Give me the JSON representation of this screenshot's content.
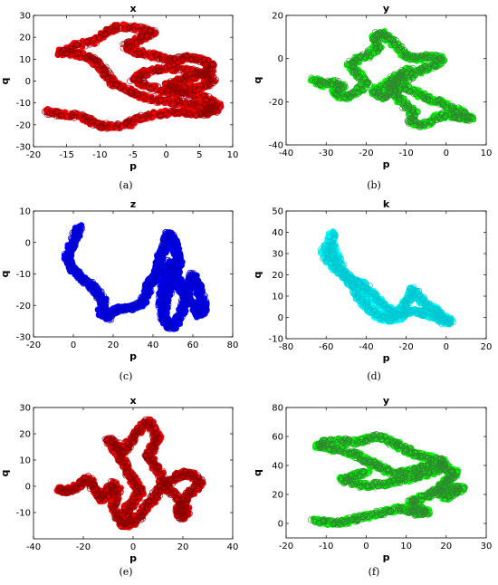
{
  "panel_labels": [
    "(a)",
    "(b)",
    "(c)",
    "(d)",
    "(e)",
    "(f)"
  ],
  "chart_data": [
    {
      "type": "scatter",
      "title": "x",
      "xlabel": "p",
      "ylabel": "q",
      "xlim": [
        -20,
        10
      ],
      "ylim": [
        -30,
        30
      ],
      "xticks": [
        -20,
        -15,
        -10,
        -5,
        0,
        5,
        10
      ],
      "yticks": [
        -30,
        -20,
        -10,
        0,
        10,
        20,
        30
      ],
      "grid": false,
      "marker": "open-circle",
      "color": "#ff0000",
      "edge_color": "#8b0000",
      "halo_color": "#ffc0ff",
      "trajectory": [
        [
          -18,
          -14
        ],
        [
          -16,
          -15
        ],
        [
          -13,
          -16
        ],
        [
          -11,
          -19
        ],
        [
          -9,
          -21
        ],
        [
          -6,
          -20
        ],
        [
          -4,
          -17
        ],
        [
          -1,
          -15
        ],
        [
          2,
          -14
        ],
        [
          5,
          -15
        ],
        [
          7,
          -13
        ],
        [
          5,
          -11
        ],
        [
          2,
          -10
        ],
        [
          -1,
          -9
        ],
        [
          -4,
          -7
        ],
        [
          -6,
          -4
        ],
        [
          -8,
          -1
        ],
        [
          -9,
          3
        ],
        [
          -10,
          7
        ],
        [
          -11,
          10
        ],
        [
          -13,
          12
        ],
        [
          -16,
          13
        ],
        [
          -14,
          16
        ],
        [
          -11,
          18
        ],
        [
          -9,
          22
        ],
        [
          -7,
          25
        ],
        [
          -4,
          24
        ],
        [
          -2,
          22
        ],
        [
          -4,
          19
        ],
        [
          -6,
          16
        ],
        [
          -4,
          13
        ],
        [
          -1,
          11
        ],
        [
          1,
          9
        ],
        [
          3,
          11
        ],
        [
          5,
          10
        ],
        [
          7,
          7
        ],
        [
          6,
          4
        ],
        [
          4,
          2
        ],
        [
          2,
          0
        ],
        [
          0,
          -2
        ],
        [
          2,
          -4
        ],
        [
          5,
          -3
        ],
        [
          7,
          0
        ],
        [
          6,
          3
        ],
        [
          3,
          5
        ],
        [
          0,
          6
        ],
        [
          -3,
          4
        ],
        [
          -5,
          1
        ],
        [
          -3,
          -2
        ],
        [
          0,
          -5
        ],
        [
          3,
          -6
        ],
        [
          6,
          -8
        ],
        [
          8,
          -12
        ],
        [
          6,
          -15
        ]
      ]
    },
    {
      "type": "scatter",
      "title": "y",
      "xlabel": "p",
      "ylabel": "q",
      "xlim": [
        -40,
        10
      ],
      "ylim": [
        -40,
        20
      ],
      "xticks": [
        -40,
        -30,
        -20,
        -10,
        0,
        10
      ],
      "yticks": [
        -40,
        -20,
        0,
        20
      ],
      "grid": false,
      "marker": "open-circle",
      "color": "#00ff00",
      "edge_color": "#2e8b2e",
      "halo_color": "#ffffff",
      "trajectory": [
        [
          -33,
          -10
        ],
        [
          -31,
          -12
        ],
        [
          -28,
          -11
        ],
        [
          -26,
          -13
        ],
        [
          -28,
          -16
        ],
        [
          -25,
          -18
        ],
        [
          -22,
          -15
        ],
        [
          -20,
          -11
        ],
        [
          -22,
          -7
        ],
        [
          -24,
          -3
        ],
        [
          -22,
          0
        ],
        [
          -19,
          2
        ],
        [
          -17,
          6
        ],
        [
          -18,
          10
        ],
        [
          -16,
          12
        ],
        [
          -14,
          9
        ],
        [
          -12,
          5
        ],
        [
          -10,
          1
        ],
        [
          -7,
          0
        ],
        [
          -4,
          1
        ],
        [
          -1,
          0
        ],
        [
          -3,
          -3
        ],
        [
          -6,
          -5
        ],
        [
          -9,
          -8
        ],
        [
          -12,
          -11
        ],
        [
          -14,
          -14
        ],
        [
          -12,
          -18
        ],
        [
          -10,
          -22
        ],
        [
          -8,
          -25
        ],
        [
          -9,
          -29
        ],
        [
          -6,
          -31
        ],
        [
          -3,
          -28
        ],
        [
          0,
          -26
        ],
        [
          3,
          -27
        ],
        [
          6,
          -28
        ],
        [
          4,
          -25
        ],
        [
          1,
          -23
        ],
        [
          -2,
          -20
        ],
        [
          -5,
          -18
        ],
        [
          -8,
          -15
        ],
        [
          -11,
          -13
        ],
        [
          -14,
          -16
        ],
        [
          -16,
          -18
        ],
        [
          -18,
          -15
        ],
        [
          -15,
          -12
        ],
        [
          -13,
          -9
        ],
        [
          -11,
          -7
        ],
        [
          -9,
          -5
        ]
      ]
    },
    {
      "type": "scatter",
      "title": "z",
      "xlabel": "p",
      "ylabel": "q",
      "xlim": [
        -20,
        80
      ],
      "ylim": [
        -30,
        10
      ],
      "xticks": [
        -20,
        0,
        20,
        40,
        60,
        80
      ],
      "yticks": [
        -30,
        -20,
        -10,
        0,
        10
      ],
      "grid": false,
      "marker": "open-circle",
      "color": "#0000ff",
      "edge_color": "#0000cd",
      "halo_color": "#ffffff",
      "trajectory": [
        [
          3,
          5
        ],
        [
          1,
          2
        ],
        [
          -1,
          -1
        ],
        [
          -3,
          -5
        ],
        [
          -1,
          -8
        ],
        [
          2,
          -10
        ],
        [
          5,
          -12
        ],
        [
          8,
          -13
        ],
        [
          11,
          -15
        ],
        [
          13,
          -17
        ],
        [
          15,
          -19
        ],
        [
          14,
          -22
        ],
        [
          17,
          -24
        ],
        [
          20,
          -22
        ],
        [
          24,
          -21
        ],
        [
          28,
          -21
        ],
        [
          32,
          -20
        ],
        [
          35,
          -19
        ],
        [
          37,
          -16
        ],
        [
          38,
          -13
        ],
        [
          40,
          -12
        ],
        [
          42,
          -10
        ],
        [
          43,
          -7
        ],
        [
          44,
          -4
        ],
        [
          46,
          -2
        ],
        [
          47,
          1
        ],
        [
          48,
          3
        ],
        [
          50,
          1
        ],
        [
          52,
          -3
        ],
        [
          53,
          -7
        ],
        [
          50,
          -11
        ],
        [
          48,
          -15
        ],
        [
          46,
          -19
        ],
        [
          45,
          -23
        ],
        [
          47,
          -26
        ],
        [
          50,
          -27
        ],
        [
          53,
          -24
        ],
        [
          55,
          -21
        ],
        [
          57,
          -17
        ],
        [
          58,
          -13
        ],
        [
          60,
          -10
        ],
        [
          62,
          -13
        ],
        [
          64,
          -17
        ],
        [
          66,
          -21
        ],
        [
          63,
          -23
        ],
        [
          60,
          -20
        ],
        [
          56,
          -17
        ],
        [
          53,
          -13
        ],
        [
          51,
          -9
        ],
        [
          49,
          -6
        ],
        [
          47,
          -10
        ],
        [
          45,
          -15
        ],
        [
          44,
          -20
        ]
      ]
    },
    {
      "type": "scatter",
      "title": "k",
      "xlabel": "p",
      "ylabel": "q",
      "xlim": [
        -80,
        20
      ],
      "ylim": [
        -10,
        50
      ],
      "xticks": [
        -80,
        -60,
        -40,
        -20,
        0,
        20
      ],
      "yticks": [
        -10,
        0,
        10,
        20,
        30,
        40,
        50
      ],
      "grid": false,
      "marker": "open-circle",
      "color": "#00ffff",
      "edge_color": "#00c8d2",
      "halo_color": "#ffffff",
      "trajectory": [
        [
          -57,
          40
        ],
        [
          -58,
          35
        ],
        [
          -61,
          31
        ],
        [
          -59,
          27
        ],
        [
          -56,
          24
        ],
        [
          -53,
          21
        ],
        [
          -50,
          19
        ],
        [
          -46,
          17
        ],
        [
          -43,
          16
        ],
        [
          -40,
          14
        ],
        [
          -37,
          11
        ],
        [
          -34,
          8
        ],
        [
          -31,
          5
        ],
        [
          -28,
          3
        ],
        [
          -25,
          2
        ],
        [
          -22,
          4
        ],
        [
          -20,
          7
        ],
        [
          -18,
          10
        ],
        [
          -17,
          13
        ],
        [
          -15,
          11
        ],
        [
          -12,
          8
        ],
        [
          -9,
          5
        ],
        [
          -6,
          4
        ],
        [
          -4,
          2
        ],
        [
          -2,
          0
        ],
        [
          0,
          -1
        ],
        [
          2,
          -2
        ],
        [
          -1,
          -2
        ],
        [
          -4,
          0
        ],
        [
          -8,
          1
        ],
        [
          -12,
          2
        ],
        [
          -16,
          3
        ],
        [
          -20,
          2
        ],
        [
          -24,
          0
        ],
        [
          -28,
          -1
        ],
        [
          -32,
          0
        ],
        [
          -36,
          2
        ],
        [
          -39,
          5
        ],
        [
          -42,
          8
        ],
        [
          -44,
          11
        ],
        [
          -46,
          14
        ],
        [
          -48,
          17
        ],
        [
          -51,
          21
        ],
        [
          -54,
          26
        ],
        [
          -56,
          30
        ],
        [
          -57,
          34
        ]
      ]
    },
    {
      "type": "scatter",
      "title": "x",
      "xlabel": "p",
      "ylabel": "q",
      "xlim": [
        -40,
        40
      ],
      "ylim": [
        -20,
        30
      ],
      "xticks": [
        -40,
        -20,
        0,
        20,
        40
      ],
      "yticks": [
        -10,
        0,
        10,
        20,
        30
      ],
      "grid": false,
      "marker": "open-circle",
      "color": "#ff0000",
      "edge_color": "#8b0000",
      "halo_color": "#ffc0ff",
      "trajectory": [
        [
          -30,
          -1
        ],
        [
          -27,
          -2
        ],
        [
          -24,
          -1
        ],
        [
          -21,
          1
        ],
        [
          -18,
          3
        ],
        [
          -16,
          0
        ],
        [
          -14,
          -3
        ],
        [
          -12,
          -5
        ],
        [
          -10,
          -2
        ],
        [
          -8,
          1
        ],
        [
          -6,
          -2
        ],
        [
          -8,
          -6
        ],
        [
          -7,
          -10
        ],
        [
          -5,
          -13
        ],
        [
          -3,
          -15
        ],
        [
          0,
          -14
        ],
        [
          3,
          -11
        ],
        [
          5,
          -8
        ],
        [
          8,
          -5
        ],
        [
          10,
          -2
        ],
        [
          12,
          1
        ],
        [
          15,
          2
        ],
        [
          18,
          4
        ],
        [
          21,
          5
        ],
        [
          24,
          4
        ],
        [
          27,
          2
        ],
        [
          25,
          -1
        ],
        [
          22,
          -3
        ],
        [
          20,
          -6
        ],
        [
          18,
          -9
        ],
        [
          20,
          -12
        ],
        [
          22,
          -9
        ],
        [
          19,
          -5
        ],
        [
          15,
          -2
        ],
        [
          12,
          2
        ],
        [
          10,
          6
        ],
        [
          8,
          9
        ],
        [
          6,
          12
        ],
        [
          8,
          15
        ],
        [
          10,
          18
        ],
        [
          8,
          22
        ],
        [
          6,
          25
        ],
        [
          3,
          22
        ],
        [
          0,
          19
        ],
        [
          -2,
          16
        ],
        [
          -4,
          13
        ],
        [
          -7,
          16
        ],
        [
          -10,
          18
        ],
        [
          -8,
          15
        ],
        [
          -5,
          11
        ],
        [
          -3,
          8
        ],
        [
          -1,
          4
        ],
        [
          1,
          1
        ],
        [
          3,
          -2
        ],
        [
          0,
          -6
        ],
        [
          -3,
          -9
        ],
        [
          -1,
          -12
        ]
      ]
    },
    {
      "type": "scatter",
      "title": "y",
      "xlabel": "p",
      "ylabel": "q",
      "xlim": [
        -20,
        30
      ],
      "ylim": [
        -10,
        80
      ],
      "xticks": [
        -20,
        -10,
        0,
        10,
        20,
        30
      ],
      "yticks": [
        0,
        20,
        40,
        60,
        80
      ],
      "grid": false,
      "marker": "open-circle",
      "color": "#00ff00",
      "edge_color": "#2e8b2e",
      "halo_color": "#ffffff",
      "trajectory": [
        [
          -13,
          2
        ],
        [
          -10,
          1
        ],
        [
          -7,
          0
        ],
        [
          -4,
          2
        ],
        [
          -1,
          4
        ],
        [
          2,
          6
        ],
        [
          5,
          8
        ],
        [
          8,
          10
        ],
        [
          11,
          9
        ],
        [
          13,
          7
        ],
        [
          15,
          8
        ],
        [
          13,
          11
        ],
        [
          11,
          14
        ],
        [
          13,
          17
        ],
        [
          16,
          20
        ],
        [
          18,
          23
        ],
        [
          21,
          25
        ],
        [
          24,
          24
        ],
        [
          22,
          21
        ],
        [
          20,
          18
        ],
        [
          18,
          22
        ],
        [
          19,
          27
        ],
        [
          21,
          31
        ],
        [
          22,
          35
        ],
        [
          20,
          38
        ],
        [
          17,
          40
        ],
        [
          14,
          39
        ],
        [
          11,
          36
        ],
        [
          8,
          34
        ],
        [
          5,
          37
        ],
        [
          3,
          40
        ],
        [
          1,
          42
        ],
        [
          -1,
          45
        ],
        [
          -3,
          48
        ],
        [
          -6,
          50
        ],
        [
          -9,
          52
        ],
        [
          -12,
          54
        ],
        [
          -10,
          56
        ],
        [
          -6,
          57
        ],
        [
          -3,
          56
        ],
        [
          0,
          58
        ],
        [
          3,
          60
        ],
        [
          6,
          57
        ],
        [
          8,
          54
        ],
        [
          10,
          51
        ],
        [
          12,
          48
        ],
        [
          15,
          46
        ],
        [
          18,
          44
        ],
        [
          20,
          41
        ],
        [
          18,
          37
        ],
        [
          15,
          34
        ],
        [
          12,
          32
        ],
        [
          9,
          30
        ],
        [
          6,
          28
        ],
        [
          3,
          27
        ],
        [
          0,
          26
        ],
        [
          -3,
          28
        ],
        [
          -6,
          30
        ],
        [
          -3,
          33
        ],
        [
          0,
          35
        ]
      ]
    }
  ]
}
